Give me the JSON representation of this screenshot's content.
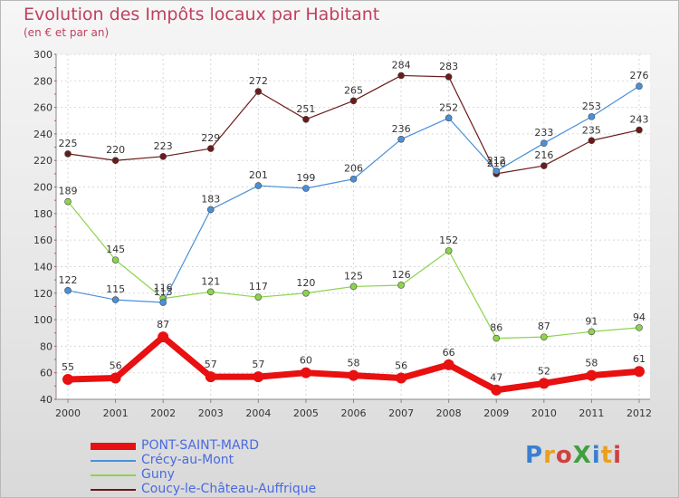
{
  "title": "Evolution des Impôts locaux par Habitant",
  "subtitle": "(en € et par an)",
  "logo_text": "ProXiti",
  "chart_data": {
    "type": "line",
    "title": "Evolution des Impôts locaux par Habitant",
    "subtitle": "(en € et par an)",
    "xlabel": "",
    "ylabel": "",
    "x": [
      "2000",
      "2001",
      "2002",
      "2003",
      "2004",
      "2005",
      "2006",
      "2007",
      "2008",
      "2009",
      "2010",
      "2011",
      "2012"
    ],
    "ylim": [
      40,
      300
    ],
    "yticks": [
      40,
      60,
      80,
      100,
      120,
      140,
      160,
      180,
      200,
      220,
      240,
      260,
      280,
      300
    ],
    "grid": true,
    "legend_position": "bottom-left",
    "series": [
      {
        "name": "PONT-SAINT-MARD",
        "color": "#e81010",
        "values": [
          55,
          56,
          87,
          57,
          57,
          60,
          58,
          56,
          66,
          47,
          52,
          58,
          61
        ]
      },
      {
        "name": "Crécy-au-Mont",
        "color": "#4a90d9",
        "values": [
          122,
          115,
          113,
          183,
          201,
          199,
          206,
          236,
          252,
          212,
          233,
          253,
          276
        ]
      },
      {
        "name": "Guny",
        "color": "#8cd44c",
        "values": [
          189,
          145,
          116,
          121,
          117,
          120,
          125,
          126,
          152,
          86,
          87,
          91,
          94
        ]
      },
      {
        "name": "Coucy-le-Château-Auffrique",
        "color": "#6b1a1a",
        "values": [
          225,
          220,
          223,
          229,
          272,
          251,
          265,
          284,
          283,
          210,
          216,
          235,
          243
        ]
      }
    ]
  }
}
